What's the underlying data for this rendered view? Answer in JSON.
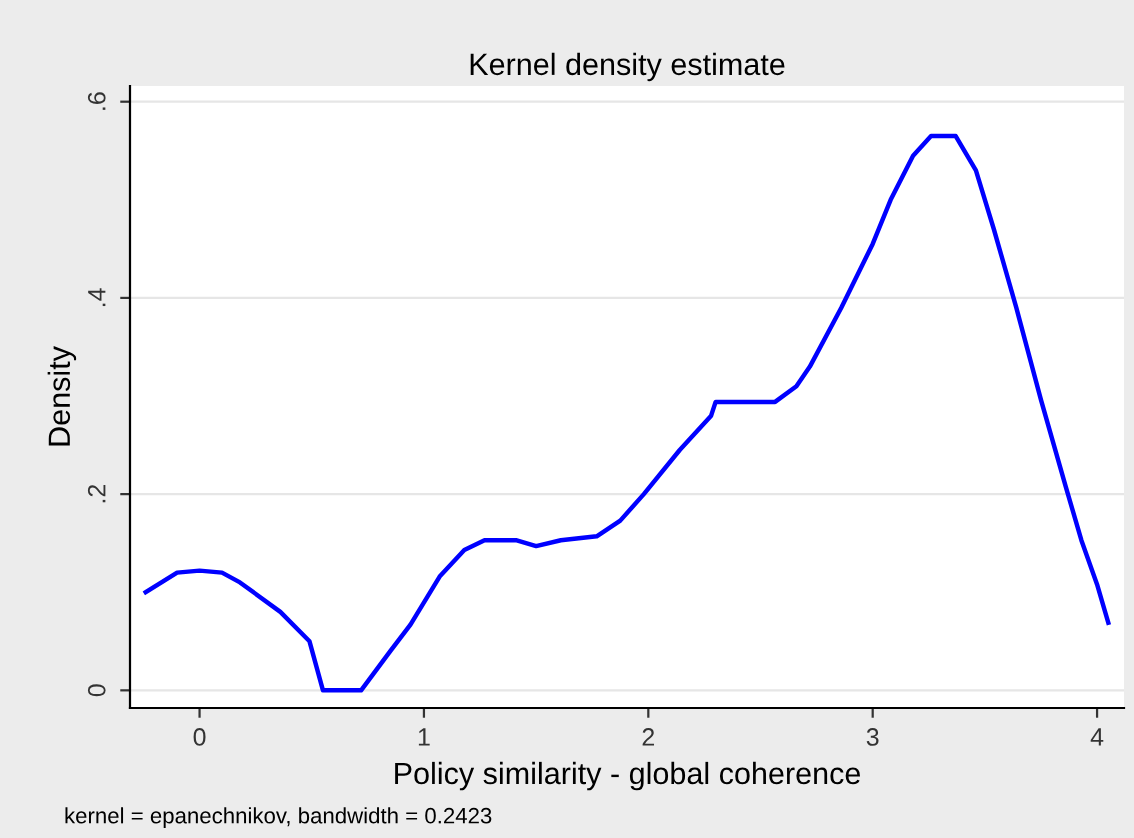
{
  "chart_data": {
    "type": "line",
    "title": "Kernel density estimate",
    "xlabel": "Policy similarity - global coherence",
    "ylabel": "Density",
    "annotations": [
      "kernel = epanechnikov, bandwidth = 0.2423"
    ],
    "series": [
      {
        "color": "#0000ff",
        "x": [
          -0.24,
          -0.1,
          0.0,
          0.1,
          0.18,
          0.36,
          0.49,
          0.55,
          0.72,
          0.85,
          0.94,
          1.07,
          1.18,
          1.27,
          1.41,
          1.5,
          1.61,
          1.77,
          1.875,
          1.98,
          2.14,
          2.28,
          2.3,
          2.565,
          2.66,
          2.72,
          2.86,
          3.0,
          3.08,
          3.18,
          3.26,
          3.37,
          3.46,
          3.54,
          3.64,
          3.75,
          3.86,
          3.93,
          4.0,
          4.05
        ],
        "values": [
          0.1,
          0.12,
          0.122,
          0.12,
          0.11,
          0.08,
          0.05,
          0.0,
          0.0,
          0.04,
          0.067,
          0.116,
          0.143,
          0.153,
          0.153,
          0.147,
          0.153,
          0.157,
          0.173,
          0.2,
          0.245,
          0.28,
          0.294,
          0.294,
          0.31,
          0.33,
          0.39,
          0.455,
          0.5,
          0.545,
          0.565,
          0.565,
          0.53,
          0.47,
          0.39,
          0.296,
          0.208,
          0.153,
          0.108,
          0.069
        ]
      }
    ],
    "xlim": [
      -0.31,
      4.12
    ],
    "ylim": [
      -0.018,
      0.616
    ],
    "xticks": [
      0,
      1,
      2,
      3,
      4
    ],
    "yticks": [
      {
        "value": 0,
        "label": "0"
      },
      {
        "value": 0.2,
        "label": ".2"
      },
      {
        "value": 0.4,
        "label": ".4"
      },
      {
        "value": 0.6,
        "label": ".6"
      }
    ],
    "grid": "y",
    "legend": false,
    "line_style": "solid",
    "marker": "none"
  }
}
